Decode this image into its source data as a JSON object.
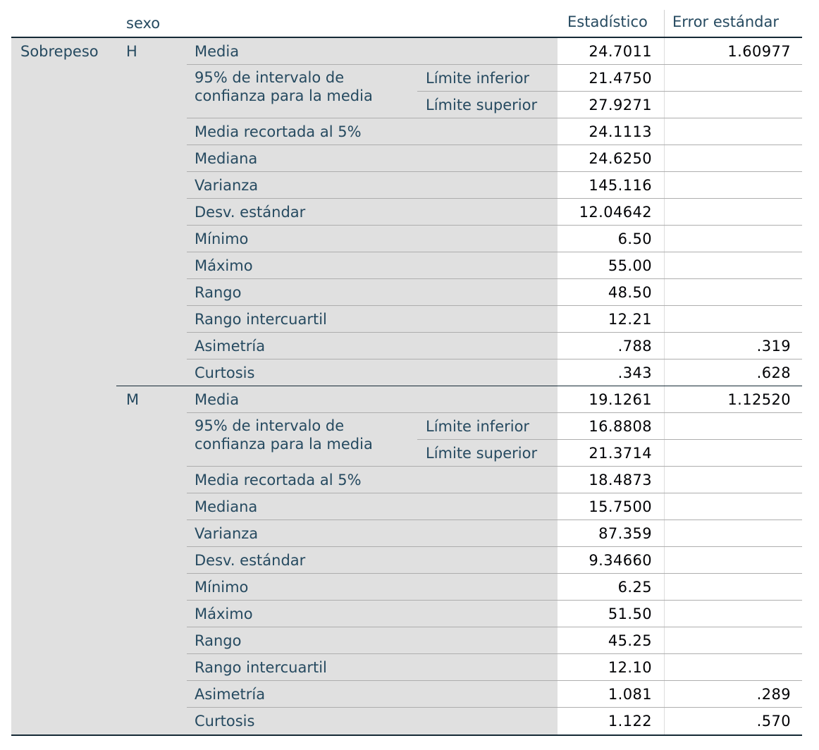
{
  "header": {
    "group_var": "sexo",
    "col_stat": "Estadístico",
    "col_se": "Error estándar"
  },
  "dependent": "Sobrepeso",
  "ci_label": "95% de intervalo de confianza para la media",
  "ci_lower": "Límite inferior",
  "ci_upper": "Límite superior",
  "groups": [
    {
      "name": "H",
      "media": {
        "label": "Media",
        "stat": "24.7011",
        "se": "1.60977"
      },
      "ci_lower_value": "21.4750",
      "ci_upper_value": "27.9271",
      "rows": [
        {
          "label": "Media recortada al 5%",
          "stat": "24.1113",
          "se": ""
        },
        {
          "label": "Mediana",
          "stat": "24.6250",
          "se": ""
        },
        {
          "label": "Varianza",
          "stat": "145.116",
          "se": ""
        },
        {
          "label": "Desv. estándar",
          "stat": "12.04642",
          "se": ""
        },
        {
          "label": "Mínimo",
          "stat": "6.50",
          "se": ""
        },
        {
          "label": "Máximo",
          "stat": "55.00",
          "se": ""
        },
        {
          "label": "Rango",
          "stat": "48.50",
          "se": ""
        },
        {
          "label": "Rango intercuartil",
          "stat": "12.21",
          "se": ""
        },
        {
          "label": "Asimetría",
          "stat": ".788",
          "se": ".319"
        },
        {
          "label": "Curtosis",
          "stat": ".343",
          "se": ".628"
        }
      ]
    },
    {
      "name": "M",
      "media": {
        "label": "Media",
        "stat": "19.1261",
        "se": "1.12520"
      },
      "ci_lower_value": "16.8808",
      "ci_upper_value": "21.3714",
      "rows": [
        {
          "label": "Media recortada al 5%",
          "stat": "18.4873",
          "se": ""
        },
        {
          "label": "Mediana",
          "stat": "15.7500",
          "se": ""
        },
        {
          "label": "Varianza",
          "stat": "87.359",
          "se": ""
        },
        {
          "label": "Desv. estándar",
          "stat": "9.34660",
          "se": ""
        },
        {
          "label": "Mínimo",
          "stat": "6.25",
          "se": ""
        },
        {
          "label": "Máximo",
          "stat": "51.50",
          "se": ""
        },
        {
          "label": "Rango",
          "stat": "45.25",
          "se": ""
        },
        {
          "label": "Rango intercuartil",
          "stat": "12.10",
          "se": ""
        },
        {
          "label": "Asimetría",
          "stat": "1.081",
          "se": ".289"
        },
        {
          "label": "Curtosis",
          "stat": "1.122",
          "se": ".570"
        }
      ]
    }
  ],
  "colors": {
    "label_text": "#264a60",
    "value_text": "#010205",
    "label_bg": "#e0e0e0",
    "rule": "#152935"
  }
}
